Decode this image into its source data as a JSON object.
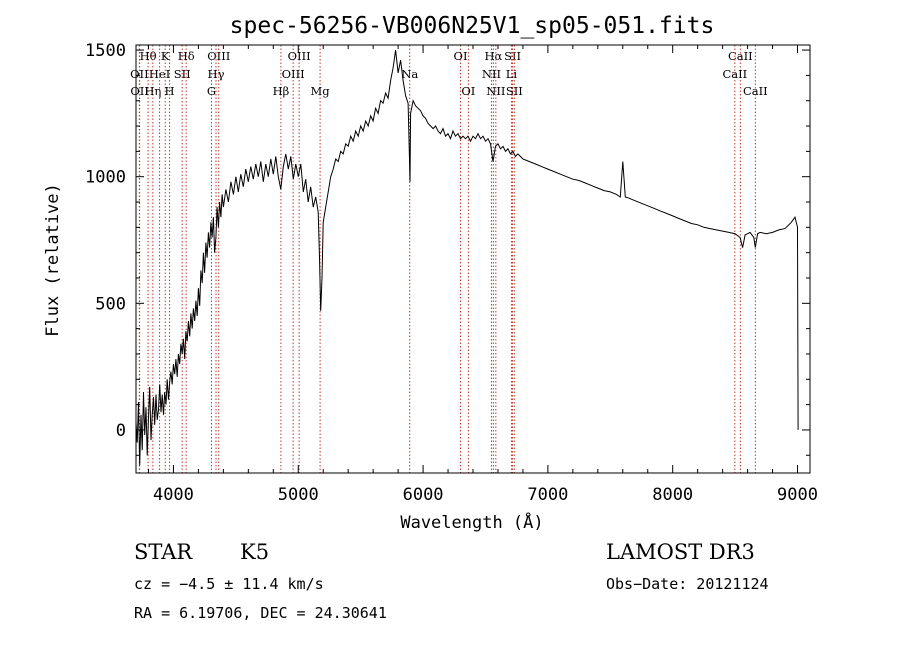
{
  "chart_data": {
    "type": "line",
    "title": "spec-56256-VB006N25V1_sp05-051.fits",
    "xlabel": "Wavelength (Å)",
    "ylabel": "Flux (relative)",
    "xlim": [
      3700,
      9100
    ],
    "ylim": [
      -170,
      1520
    ],
    "x_ticks": [
      4000,
      5000,
      6000,
      7000,
      8000,
      9000
    ],
    "y_ticks": [
      0,
      500,
      1000,
      1500
    ],
    "series": [
      {
        "name": "flux",
        "points": [
          [
            3700,
            30
          ],
          [
            3710,
            -50
          ],
          [
            3720,
            110
          ],
          [
            3730,
            -140
          ],
          [
            3740,
            60
          ],
          [
            3750,
            -80
          ],
          [
            3760,
            150
          ],
          [
            3770,
            -20
          ],
          [
            3780,
            90
          ],
          [
            3790,
            -100
          ],
          [
            3800,
            50
          ],
          [
            3810,
            170
          ],
          [
            3820,
            -40
          ],
          [
            3830,
            60
          ],
          [
            3840,
            130
          ],
          [
            3850,
            20
          ],
          [
            3860,
            140
          ],
          [
            3870,
            40
          ],
          [
            3880,
            80
          ],
          [
            3890,
            180
          ],
          [
            3900,
            70
          ],
          [
            3910,
            140
          ],
          [
            3920,
            60
          ],
          [
            3930,
            150
          ],
          [
            3940,
            100
          ],
          [
            3950,
            200
          ],
          [
            3960,
            120
          ],
          [
            3970,
            190
          ],
          [
            3980,
            230
          ],
          [
            3990,
            180
          ],
          [
            4000,
            260
          ],
          [
            4010,
            220
          ],
          [
            4020,
            280
          ],
          [
            4030,
            210
          ],
          [
            4040,
            300
          ],
          [
            4050,
            260
          ],
          [
            4060,
            340
          ],
          [
            4070,
            300
          ],
          [
            4080,
            360
          ],
          [
            4090,
            280
          ],
          [
            4100,
            390
          ],
          [
            4110,
            350
          ],
          [
            4120,
            430
          ],
          [
            4130,
            370
          ],
          [
            4140,
            460
          ],
          [
            4150,
            400
          ],
          [
            4160,
            480
          ],
          [
            4170,
            430
          ],
          [
            4180,
            510
          ],
          [
            4190,
            450
          ],
          [
            4200,
            560
          ],
          [
            4210,
            490
          ],
          [
            4220,
            630
          ],
          [
            4230,
            580
          ],
          [
            4240,
            700
          ],
          [
            4250,
            620
          ],
          [
            4260,
            740
          ],
          [
            4270,
            680
          ],
          [
            4280,
            780
          ],
          [
            4290,
            720
          ],
          [
            4300,
            820
          ],
          [
            4310,
            760
          ],
          [
            4320,
            840
          ],
          [
            4330,
            700
          ],
          [
            4340,
            760
          ],
          [
            4350,
            880
          ],
          [
            4360,
            800
          ],
          [
            4370,
            900
          ],
          [
            4380,
            840
          ],
          [
            4390,
            930
          ],
          [
            4400,
            880
          ],
          [
            4420,
            950
          ],
          [
            4440,
            900
          ],
          [
            4460,
            980
          ],
          [
            4480,
            930
          ],
          [
            4500,
            1000
          ],
          [
            4520,
            940
          ],
          [
            4540,
            1010
          ],
          [
            4560,
            960
          ],
          [
            4580,
            1030
          ],
          [
            4600,
            980
          ],
          [
            4620,
            1040
          ],
          [
            4640,
            990
          ],
          [
            4660,
            1050
          ],
          [
            4680,
            1000
          ],
          [
            4700,
            1060
          ],
          [
            4720,
            980
          ],
          [
            4740,
            1050
          ],
          [
            4760,
            1000
          ],
          [
            4780,
            1070
          ],
          [
            4800,
            1010
          ],
          [
            4820,
            1080
          ],
          [
            4840,
            1000
          ],
          [
            4860,
            950
          ],
          [
            4880,
            1040
          ],
          [
            4900,
            1090
          ],
          [
            4920,
            1030
          ],
          [
            4940,
            1080
          ],
          [
            4960,
            990
          ],
          [
            4980,
            1050
          ],
          [
            5000,
            1000
          ],
          [
            5020,
            1050
          ],
          [
            5040,
            940
          ],
          [
            5060,
            990
          ],
          [
            5080,
            900
          ],
          [
            5100,
            960
          ],
          [
            5120,
            880
          ],
          [
            5140,
            920
          ],
          [
            5160,
            860
          ],
          [
            5170,
            680
          ],
          [
            5180,
            470
          ],
          [
            5190,
            600
          ],
          [
            5200,
            820
          ],
          [
            5220,
            880
          ],
          [
            5240,
            940
          ],
          [
            5260,
            1000
          ],
          [
            5280,
            1030
          ],
          [
            5300,
            1070
          ],
          [
            5320,
            1060
          ],
          [
            5340,
            1100
          ],
          [
            5360,
            1090
          ],
          [
            5380,
            1130
          ],
          [
            5400,
            1120
          ],
          [
            5420,
            1160
          ],
          [
            5440,
            1140
          ],
          [
            5460,
            1180
          ],
          [
            5480,
            1160
          ],
          [
            5500,
            1200
          ],
          [
            5520,
            1180
          ],
          [
            5540,
            1220
          ],
          [
            5560,
            1200
          ],
          [
            5580,
            1240
          ],
          [
            5600,
            1220
          ],
          [
            5620,
            1270
          ],
          [
            5640,
            1250
          ],
          [
            5660,
            1300
          ],
          [
            5680,
            1290
          ],
          [
            5700,
            1330
          ],
          [
            5720,
            1310
          ],
          [
            5740,
            1380
          ],
          [
            5760,
            1430
          ],
          [
            5780,
            1500
          ],
          [
            5800,
            1410
          ],
          [
            5820,
            1460
          ],
          [
            5840,
            1380
          ],
          [
            5860,
            1320
          ],
          [
            5880,
            1290
          ],
          [
            5890,
            1100
          ],
          [
            5895,
            980
          ],
          [
            5900,
            1250
          ],
          [
            5920,
            1300
          ],
          [
            5940,
            1280
          ],
          [
            5960,
            1270
          ],
          [
            5980,
            1260
          ],
          [
            6000,
            1240
          ],
          [
            6020,
            1230
          ],
          [
            6040,
            1210
          ],
          [
            6060,
            1200
          ],
          [
            6080,
            1190
          ],
          [
            6100,
            1200
          ],
          [
            6120,
            1180
          ],
          [
            6140,
            1170
          ],
          [
            6160,
            1190
          ],
          [
            6180,
            1160
          ],
          [
            6200,
            1170
          ],
          [
            6220,
            1150
          ],
          [
            6240,
            1180
          ],
          [
            6260,
            1160
          ],
          [
            6280,
            1170
          ],
          [
            6300,
            1150
          ],
          [
            6320,
            1160
          ],
          [
            6340,
            1150
          ],
          [
            6360,
            1160
          ],
          [
            6380,
            1140
          ],
          [
            6400,
            1160
          ],
          [
            6420,
            1150
          ],
          [
            6440,
            1170
          ],
          [
            6460,
            1150
          ],
          [
            6480,
            1160
          ],
          [
            6500,
            1140
          ],
          [
            6520,
            1150
          ],
          [
            6540,
            1130
          ],
          [
            6560,
            1060
          ],
          [
            6580,
            1120
          ],
          [
            6600,
            1130
          ],
          [
            6620,
            1110
          ],
          [
            6640,
            1120
          ],
          [
            6660,
            1100
          ],
          [
            6680,
            1110
          ],
          [
            6700,
            1090
          ],
          [
            6720,
            1100
          ],
          [
            6740,
            1080
          ],
          [
            6760,
            1090
          ],
          [
            6780,
            1080
          ],
          [
            6800,
            1070
          ],
          [
            6850,
            1060
          ],
          [
            6900,
            1050
          ],
          [
            6950,
            1040
          ],
          [
            7000,
            1030
          ],
          [
            7050,
            1020
          ],
          [
            7100,
            1010
          ],
          [
            7150,
            1000
          ],
          [
            7200,
            990
          ],
          [
            7250,
            985
          ],
          [
            7300,
            975
          ],
          [
            7350,
            965
          ],
          [
            7400,
            955
          ],
          [
            7450,
            945
          ],
          [
            7500,
            940
          ],
          [
            7550,
            930
          ],
          [
            7580,
            920
          ],
          [
            7600,
            1060
          ],
          [
            7620,
            920
          ],
          [
            7650,
            915
          ],
          [
            7700,
            905
          ],
          [
            7750,
            895
          ],
          [
            7800,
            885
          ],
          [
            7850,
            875
          ],
          [
            7900,
            865
          ],
          [
            7950,
            855
          ],
          [
            8000,
            845
          ],
          [
            8050,
            835
          ],
          [
            8100,
            825
          ],
          [
            8150,
            815
          ],
          [
            8200,
            810
          ],
          [
            8250,
            800
          ],
          [
            8300,
            795
          ],
          [
            8350,
            790
          ],
          [
            8400,
            785
          ],
          [
            8450,
            780
          ],
          [
            8500,
            775
          ],
          [
            8540,
            760
          ],
          [
            8560,
            720
          ],
          [
            8580,
            770
          ],
          [
            8600,
            775
          ],
          [
            8620,
            780
          ],
          [
            8650,
            760
          ],
          [
            8662,
            720
          ],
          [
            8680,
            775
          ],
          [
            8700,
            780
          ],
          [
            8750,
            775
          ],
          [
            8800,
            780
          ],
          [
            8850,
            790
          ],
          [
            8900,
            795
          ],
          [
            8950,
            820
          ],
          [
            8980,
            840
          ],
          [
            9000,
            800
          ],
          [
            9005,
            0
          ]
        ]
      }
    ],
    "spectral_lines": [
      {
        "label": "Hθ",
        "wavelength": 3797,
        "row": 1
      },
      {
        "label": "OII",
        "wavelength": 3727,
        "row": 2
      },
      {
        "label": "OII",
        "wavelength": 3729,
        "row": 3
      },
      {
        "label": "Hη",
        "wavelength": 3835,
        "row": 3
      },
      {
        "label": "HeI",
        "wavelength": 3889,
        "row": 2
      },
      {
        "label": "K",
        "wavelength": 3934,
        "row": 1
      },
      {
        "label": "H",
        "wavelength": 3969,
        "row": 3
      },
      {
        "label": "SII",
        "wavelength": 4070,
        "row": 2
      },
      {
        "label": "Hδ",
        "wavelength": 4102,
        "row": 1
      },
      {
        "label": "OIII",
        "wavelength": 4363,
        "row": 1
      },
      {
        "label": "Hγ",
        "wavelength": 4341,
        "row": 2
      },
      {
        "label": "G",
        "wavelength": 4305,
        "row": 3
      },
      {
        "label": "Hβ",
        "wavelength": 4861,
        "row": 3
      },
      {
        "label": "OIII",
        "wavelength": 4959,
        "row": 2
      },
      {
        "label": "OIII",
        "wavelength": 5007,
        "row": 1
      },
      {
        "label": "Mg",
        "wavelength": 5175,
        "row": 3
      },
      {
        "label": "Na",
        "wavelength": 5893,
        "row": 2
      },
      {
        "label": "OI",
        "wavelength": 6300,
        "row": 1
      },
      {
        "label": "OI",
        "wavelength": 6363,
        "row": 3
      },
      {
        "label": "Hα",
        "wavelength": 6563,
        "row": 1
      },
      {
        "label": "NII",
        "wavelength": 6548,
        "row": 2
      },
      {
        "label": "NII",
        "wavelength": 6583,
        "row": 3
      },
      {
        "label": "SII",
        "wavelength": 6717,
        "row": 1
      },
      {
        "label": "Li",
        "wavelength": 6708,
        "row": 2
      },
      {
        "label": "SII",
        "wavelength": 6731,
        "row": 3
      },
      {
        "label": "CaII",
        "wavelength": 8542,
        "row": 1
      },
      {
        "label": "CaII",
        "wavelength": 8498,
        "row": 2
      },
      {
        "label": "CaII",
        "wavelength": 8662,
        "row": 3
      }
    ]
  },
  "info": {
    "object_class": "STAR",
    "subclass": "K5",
    "survey": "LAMOST DR3",
    "redshift": "cz = −4.5 ± 11.4 km/s",
    "obs_date": "Obs−Date: 20121124",
    "coords": "RA =   6.19706, DEC =  24.30641"
  }
}
